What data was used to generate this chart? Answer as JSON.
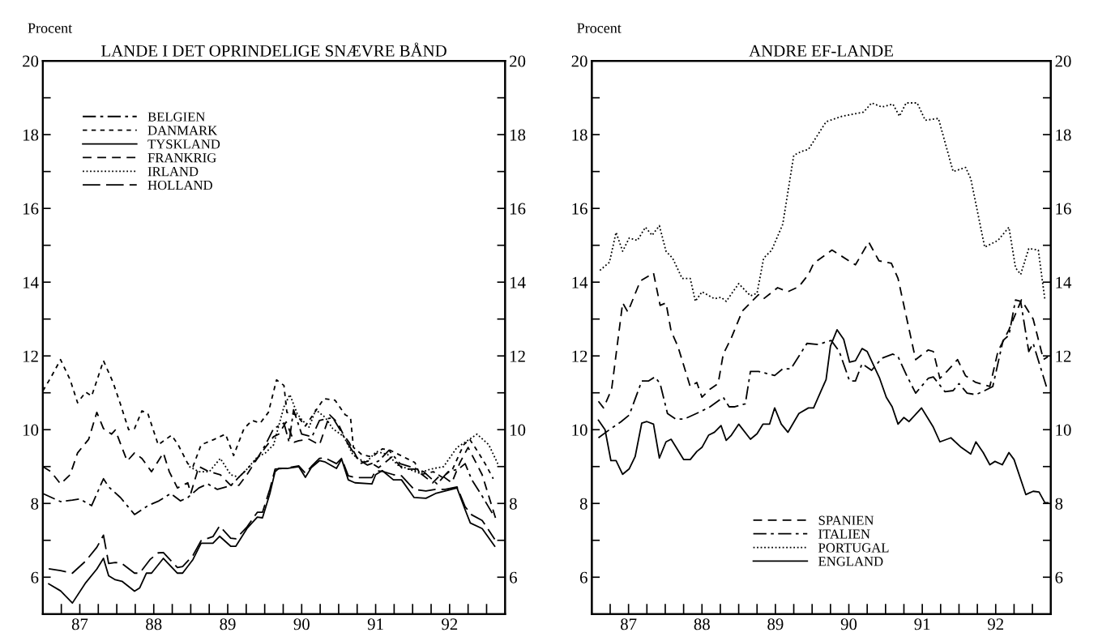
{
  "chart_data": [
    {
      "type": "line",
      "title": "LANDE I DET OPRINDELIGE SNÆVRE BÅND",
      "ylabel": "Procent",
      "xlim": [
        1986.5,
        1992.75
      ],
      "ylim": [
        5,
        20
      ],
      "y2lim": [
        5,
        20
      ],
      "xticks": [
        {
          "value": 1986.75,
          "label": null
        },
        {
          "value": 1987,
          "label": "87"
        },
        {
          "value": 1987.25,
          "label": null
        },
        {
          "value": 1987.5,
          "label": null
        },
        {
          "value": 1987.75,
          "label": null
        },
        {
          "value": 1988,
          "label": "88"
        },
        {
          "value": 1988.25,
          "label": null
        },
        {
          "value": 1988.5,
          "label": null
        },
        {
          "value": 1988.75,
          "label": null
        },
        {
          "value": 1989,
          "label": "89"
        },
        {
          "value": 1989.25,
          "label": null
        },
        {
          "value": 1989.5,
          "label": null
        },
        {
          "value": 1989.75,
          "label": null
        },
        {
          "value": 1990,
          "label": "90"
        },
        {
          "value": 1990.25,
          "label": null
        },
        {
          "value": 1990.5,
          "label": null
        },
        {
          "value": 1990.75,
          "label": null
        },
        {
          "value": 1991,
          "label": "91"
        },
        {
          "value": 1991.25,
          "label": null
        },
        {
          "value": 1991.5,
          "label": null
        },
        {
          "value": 1991.75,
          "label": null
        },
        {
          "value": 1992,
          "label": "92"
        },
        {
          "value": 1992.25,
          "label": null
        },
        {
          "value": 1992.5,
          "label": null
        }
      ],
      "yticks": [
        6,
        {
          "value": 7,
          "label": null
        },
        8,
        {
          "value": 9,
          "label": null
        },
        10,
        {
          "value": 11,
          "label": null
        },
        12,
        {
          "value": 13,
          "label": null
        },
        14,
        {
          "value": 15,
          "label": null
        },
        16,
        {
          "value": 17,
          "label": null
        },
        18,
        {
          "value": 19,
          "label": null
        },
        20
      ],
      "y2ticks": [
        6,
        {
          "value": 7,
          "label": null
        },
        8,
        {
          "value": 9,
          "label": null
        },
        10,
        {
          "value": 11,
          "label": null
        },
        12,
        {
          "value": 13,
          "label": null
        },
        14,
        {
          "value": 15,
          "label": null
        },
        16,
        {
          "value": 17,
          "label": null
        },
        18,
        {
          "value": 19,
          "label": null
        },
        20
      ],
      "grid": false,
      "legend": "top left",
      "series": [
        {
          "name": "BELGIEN",
          "color": "#000000",
          "line_style": "dashdot",
          "x": [
            1986.5,
            1986.74,
            1986.9,
            1987.0,
            1987.16,
            1987.32,
            1987.39,
            1987.55,
            1987.74,
            1987.92,
            1988.07,
            1988.23,
            1988.36,
            1988.46,
            1988.61,
            1988.73,
            1988.86,
            1989.04,
            1989.15,
            1989.26,
            1989.4,
            1989.51,
            1989.62,
            1989.76,
            1989.83,
            1989.89,
            1990.0,
            1990.14,
            1990.24,
            1990.42,
            1990.53,
            1990.6,
            1990.75,
            1990.89,
            1991.04,
            1991.18,
            1991.33,
            1991.51,
            1991.65,
            1991.83,
            1991.98,
            1992.12,
            1992.21,
            1992.3,
            1992.44,
            1992.59
          ],
          "values": [
            8.27,
            8.05,
            8.09,
            8.12,
            7.94,
            8.67,
            8.45,
            8.16,
            7.7,
            7.94,
            8.07,
            8.27,
            8.07,
            8.16,
            8.42,
            8.53,
            8.38,
            8.48,
            8.71,
            8.93,
            9.22,
            9.59,
            10.03,
            10.18,
            9.66,
            10.54,
            9.88,
            9.81,
            10.25,
            10.33,
            9.96,
            9.7,
            9.22,
            9.04,
            9.15,
            9.44,
            9.08,
            8.97,
            8.86,
            8.53,
            8.86,
            8.93,
            9.08,
            8.64,
            8.2,
            7.69
          ]
        },
        {
          "name": "DANMARK",
          "color": "#000000",
          "line_style": "shortdash",
          "x": [
            1986.5,
            1986.61,
            1986.74,
            1986.87,
            1986.97,
            1987.08,
            1987.16,
            1987.32,
            1987.45,
            1987.55,
            1987.66,
            1987.74,
            1987.84,
            1987.92,
            1988.06,
            1988.24,
            1988.33,
            1988.46,
            1988.53,
            1988.64,
            1988.82,
            1988.97,
            1989.08,
            1989.22,
            1989.33,
            1989.44,
            1989.55,
            1989.66,
            1989.76,
            1989.8,
            1989.93,
            1990.05,
            1990.3,
            1990.45,
            1990.59,
            1990.66,
            1990.7,
            1990.81,
            1990.95,
            1991.09,
            1991.2,
            1991.34,
            1991.53,
            1991.6,
            1991.78,
            1991.9,
            1992.04,
            1992.19,
            1992.27,
            1992.37,
            1992.48,
            1992.59
          ],
          "values": [
            11.05,
            11.42,
            11.9,
            11.35,
            10.73,
            11.02,
            10.91,
            11.87,
            11.28,
            10.69,
            10.0,
            10.03,
            10.51,
            10.44,
            9.59,
            9.85,
            9.59,
            9.08,
            9.0,
            9.59,
            9.74,
            9.88,
            9.3,
            10.03,
            10.25,
            10.18,
            10.47,
            11.35,
            11.2,
            10.47,
            10.4,
            10.1,
            10.84,
            10.8,
            10.4,
            10.33,
            9.52,
            9.33,
            9.26,
            9.48,
            9.44,
            9.3,
            9.11,
            8.78,
            8.86,
            8.71,
            8.93,
            9.59,
            9.74,
            9.44,
            9.08,
            8.67
          ]
        },
        {
          "name": "TYSKLAND",
          "color": "#000000",
          "line_style": "solid",
          "x": [
            1986.58,
            1986.74,
            1986.9,
            1987.08,
            1987.23,
            1987.32,
            1987.39,
            1987.48,
            1987.57,
            1987.74,
            1987.81,
            1987.9,
            1987.97,
            1988.13,
            1988.32,
            1988.39,
            1988.53,
            1988.64,
            1988.8,
            1988.89,
            1989.04,
            1989.11,
            1989.26,
            1989.4,
            1989.47,
            1989.57,
            1989.64,
            1989.69,
            1989.8,
            1989.96,
            1990.05,
            1990.13,
            1990.24,
            1990.31,
            1990.47,
            1990.54,
            1990.63,
            1990.72,
            1990.95,
            1991.0,
            1991.09,
            1991.24,
            1991.35,
            1991.52,
            1991.68,
            1991.81,
            1991.94,
            1992.1,
            1992.21,
            1992.28,
            1992.44,
            1992.61
          ],
          "values": [
            5.82,
            5.63,
            5.3,
            5.85,
            6.22,
            6.51,
            6.04,
            5.93,
            5.89,
            5.62,
            5.71,
            6.11,
            6.11,
            6.51,
            6.11,
            6.11,
            6.48,
            6.92,
            6.92,
            7.11,
            6.84,
            6.84,
            7.32,
            7.63,
            7.61,
            8.27,
            8.86,
            8.95,
            8.95,
            9.0,
            8.71,
            8.97,
            9.16,
            9.13,
            8.95,
            9.2,
            8.64,
            8.56,
            8.53,
            8.78,
            8.89,
            8.64,
            8.64,
            8.16,
            8.14,
            8.27,
            8.34,
            8.42,
            7.83,
            7.47,
            7.32,
            6.84
          ]
        },
        {
          "name": "FRANKRIG",
          "color": "#000000",
          "line_style": "dashed",
          "x": [
            1986.5,
            1986.61,
            1986.74,
            1986.87,
            1986.97,
            1987.12,
            1987.23,
            1987.32,
            1987.43,
            1987.48,
            1987.64,
            1987.74,
            1987.84,
            1987.97,
            1988.13,
            1988.21,
            1988.32,
            1988.46,
            1988.5,
            1988.61,
            1988.75,
            1988.9,
            1989.04,
            1989.15,
            1989.26,
            1989.4,
            1989.51,
            1989.62,
            1989.69,
            1989.79,
            1989.9,
            1989.96,
            1990.1,
            1990.24,
            1990.38,
            1990.49,
            1990.56,
            1990.64,
            1990.79,
            1990.9,
            1991.04,
            1991.22,
            1991.37,
            1991.52,
            1991.63,
            1991.77,
            1991.88,
            1992.03,
            1992.14,
            1992.25,
            1992.44,
            1992.62
          ],
          "values": [
            9.0,
            8.86,
            8.53,
            8.78,
            9.37,
            9.74,
            10.47,
            10.03,
            9.88,
            9.99,
            9.15,
            9.37,
            9.22,
            8.86,
            9.37,
            8.86,
            8.42,
            8.56,
            8.27,
            9.0,
            8.86,
            8.78,
            8.49,
            8.49,
            8.78,
            9.22,
            9.52,
            9.81,
            9.88,
            10.21,
            9.66,
            9.7,
            9.74,
            9.59,
            10.4,
            10.18,
            9.88,
            9.66,
            9.08,
            9.15,
            8.97,
            9.26,
            8.93,
            8.93,
            8.78,
            8.56,
            8.78,
            8.56,
            9.11,
            9.52,
            8.78,
            7.61
          ]
        },
        {
          "name": "IRLAND",
          "color": "#000000",
          "line_style": "dotted",
          "x": [
            1988.48,
            1988.61,
            1988.75,
            1988.9,
            1989.04,
            1989.15,
            1989.26,
            1989.4,
            1989.51,
            1989.62,
            1989.76,
            1989.84,
            1989.94,
            1990.01,
            1990.1,
            1990.19,
            1990.32,
            1990.42,
            1990.57,
            1990.69,
            1990.76,
            1990.87,
            1991.01,
            1991.16,
            1991.3,
            1991.45,
            1991.59,
            1991.74,
            1991.92,
            1992.1,
            1992.21,
            1992.37,
            1992.53,
            1992.66
          ],
          "values": [
            9.0,
            8.86,
            8.86,
            9.22,
            8.78,
            8.71,
            8.93,
            9.26,
            9.37,
            9.59,
            10.62,
            10.95,
            10.43,
            10.25,
            10.07,
            10.54,
            10.33,
            10.03,
            9.81,
            9.33,
            9.22,
            9.11,
            9.41,
            9.33,
            9.04,
            8.93,
            8.82,
            8.93,
            9.0,
            9.52,
            9.66,
            9.88,
            9.59,
            9.04
          ]
        },
        {
          "name": "HOLLAND",
          "color": "#000000",
          "line_style": "longdash",
          "x": [
            1986.58,
            1986.74,
            1986.9,
            1987.08,
            1987.23,
            1987.32,
            1987.39,
            1987.48,
            1987.57,
            1987.74,
            1987.81,
            1987.95,
            1988.06,
            1988.13,
            1988.32,
            1988.39,
            1988.53,
            1988.64,
            1988.8,
            1988.89,
            1989.04,
            1989.11,
            1989.26,
            1989.4,
            1989.47,
            1989.57,
            1989.64,
            1989.8,
            1989.96,
            1990.05,
            1990.13,
            1990.24,
            1990.31,
            1990.47,
            1990.54,
            1990.63,
            1990.72,
            1990.95,
            1991.0,
            1991.09,
            1991.24,
            1991.35,
            1991.52,
            1991.68,
            1991.81,
            1991.94,
            1992.1,
            1992.21,
            1992.3,
            1992.44,
            1992.61
          ],
          "values": [
            6.23,
            6.18,
            6.11,
            6.44,
            6.81,
            7.14,
            6.37,
            6.4,
            6.37,
            6.11,
            6.11,
            6.48,
            6.66,
            6.67,
            6.26,
            6.29,
            6.59,
            6.99,
            7.1,
            7.39,
            7.06,
            7.04,
            7.36,
            7.76,
            7.76,
            8.39,
            8.93,
            8.96,
            9.02,
            8.82,
            9.0,
            9.22,
            9.24,
            9.08,
            9.22,
            8.75,
            8.7,
            8.7,
            8.89,
            8.87,
            8.78,
            8.75,
            8.38,
            8.34,
            8.38,
            8.38,
            8.45,
            7.91,
            7.69,
            7.54,
            7.03
          ]
        }
      ]
    },
    {
      "type": "line",
      "title": "ANDRE EF-LANDE",
      "ylabel": "Procent",
      "xlim": [
        1986.5,
        1992.75
      ],
      "ylim": [
        5,
        20
      ],
      "y2lim": [
        5,
        20
      ],
      "xticks": [
        {
          "value": 1986.75,
          "label": null
        },
        {
          "value": 1987,
          "label": "87"
        },
        {
          "value": 1987.25,
          "label": null
        },
        {
          "value": 1987.5,
          "label": null
        },
        {
          "value": 1987.75,
          "label": null
        },
        {
          "value": 1988,
          "label": "88"
        },
        {
          "value": 1988.25,
          "label": null
        },
        {
          "value": 1988.5,
          "label": null
        },
        {
          "value": 1988.75,
          "label": null
        },
        {
          "value": 1989,
          "label": "89"
        },
        {
          "value": 1989.25,
          "label": null
        },
        {
          "value": 1989.5,
          "label": null
        },
        {
          "value": 1989.75,
          "label": null
        },
        {
          "value": 1990,
          "label": "90"
        },
        {
          "value": 1990.25,
          "label": null
        },
        {
          "value": 1990.5,
          "label": null
        },
        {
          "value": 1990.75,
          "label": null
        },
        {
          "value": 1991,
          "label": "91"
        },
        {
          "value": 1991.25,
          "label": null
        },
        {
          "value": 1991.5,
          "label": null
        },
        {
          "value": 1991.75,
          "label": null
        },
        {
          "value": 1992,
          "label": "92"
        },
        {
          "value": 1992.25,
          "label": null
        },
        {
          "value": 1992.5,
          "label": null
        }
      ],
      "yticks": [
        6,
        {
          "value": 7,
          "label": null
        },
        8,
        {
          "value": 9,
          "label": null
        },
        10,
        {
          "value": 11,
          "label": null
        },
        12,
        {
          "value": 13,
          "label": null
        },
        14,
        {
          "value": 15,
          "label": null
        },
        16,
        {
          "value": 17,
          "label": null
        },
        18,
        {
          "value": 19,
          "label": null
        },
        20
      ],
      "y2ticks": [
        6,
        {
          "value": 7,
          "label": null
        },
        8,
        {
          "value": 9,
          "label": null
        },
        10,
        {
          "value": 11,
          "label": null
        },
        12,
        {
          "value": 13,
          "label": null
        },
        14,
        {
          "value": 15,
          "label": null
        },
        16,
        {
          "value": 17,
          "label": null
        },
        18,
        {
          "value": 19,
          "label": null
        },
        20
      ],
      "grid": false,
      "legend": "bottom",
      "series": [
        {
          "name": "SPANIEN",
          "color": "#000000",
          "line_style": "dashed",
          "x": [
            1986.59,
            1986.66,
            1986.77,
            1986.92,
            1986.99,
            1987.16,
            1987.34,
            1987.43,
            1987.51,
            1987.58,
            1987.67,
            1987.84,
            1987.93,
            1988.0,
            1988.11,
            1988.22,
            1988.29,
            1988.4,
            1988.55,
            1988.66,
            1988.77,
            1988.84,
            1989.03,
            1989.17,
            1989.32,
            1989.45,
            1989.52,
            1989.77,
            1990.09,
            1990.27,
            1990.41,
            1990.58,
            1990.67,
            1990.79,
            1990.91,
            1991.08,
            1991.15,
            1991.24,
            1991.35,
            1991.48,
            1991.59,
            1991.73,
            1991.92,
            1992.03,
            1992.18,
            1992.35,
            1992.51,
            1992.65,
            1992.71
          ],
          "values": [
            10.77,
            10.59,
            11.1,
            13.44,
            13.19,
            14.03,
            14.25,
            13.37,
            13.44,
            12.67,
            12.27,
            11.17,
            11.28,
            10.88,
            11.1,
            11.25,
            12.05,
            12.49,
            13.22,
            13.44,
            13.66,
            13.55,
            13.85,
            13.74,
            13.88,
            14.21,
            14.51,
            14.87,
            14.47,
            15.09,
            14.58,
            14.51,
            14.1,
            13.0,
            11.9,
            12.16,
            12.12,
            11.39,
            11.61,
            11.9,
            11.46,
            11.28,
            11.17,
            12.12,
            12.71,
            13.52,
            13.0,
            11.9,
            11.98
          ]
        },
        {
          "name": "ITALIEN",
          "color": "#000000",
          "line_style": "dashdot",
          "x": [
            1986.59,
            1986.74,
            1986.9,
            1987.01,
            1987.18,
            1987.27,
            1987.36,
            1987.43,
            1987.53,
            1987.64,
            1987.76,
            1987.97,
            1988.11,
            1988.29,
            1988.37,
            1988.44,
            1988.59,
            1988.66,
            1988.77,
            1988.99,
            1989.1,
            1989.21,
            1989.43,
            1989.58,
            1989.76,
            1989.87,
            1990.01,
            1990.09,
            1990.18,
            1990.31,
            1990.45,
            1990.6,
            1990.67,
            1990.78,
            1990.91,
            1991.08,
            1991.15,
            1991.31,
            1991.42,
            1991.5,
            1991.61,
            1991.73,
            1991.85,
            1991.96,
            1992.1,
            1992.18,
            1992.27,
            1992.34,
            1992.45,
            1992.51,
            1992.69
          ],
          "values": [
            9.78,
            10.0,
            10.22,
            10.4,
            11.32,
            11.32,
            11.43,
            11.25,
            10.44,
            10.29,
            10.29,
            10.48,
            10.62,
            10.88,
            10.62,
            10.62,
            10.7,
            11.58,
            11.58,
            11.47,
            11.65,
            11.65,
            12.34,
            12.31,
            12.42,
            12.12,
            11.32,
            11.32,
            11.79,
            11.61,
            11.94,
            12.05,
            11.98,
            11.5,
            10.99,
            11.39,
            11.43,
            11.03,
            11.06,
            11.25,
            10.99,
            10.95,
            11.06,
            11.17,
            12.42,
            12.56,
            13.52,
            13.48,
            12.12,
            12.34,
            11.17
          ]
        },
        {
          "name": "PORTUGAL",
          "color": "#000000",
          "line_style": "dotted",
          "x": [
            1986.61,
            1986.74,
            1986.83,
            1986.92,
            1987.01,
            1987.12,
            1987.23,
            1987.32,
            1987.42,
            1987.51,
            1987.6,
            1987.73,
            1987.84,
            1987.91,
            1988.0,
            1988.17,
            1988.26,
            1988.33,
            1988.5,
            1988.66,
            1988.75,
            1988.84,
            1988.95,
            1989.1,
            1989.25,
            1989.36,
            1989.45,
            1989.69,
            1989.91,
            1990.2,
            1990.31,
            1990.45,
            1990.6,
            1990.69,
            1990.78,
            1990.93,
            1991.04,
            1991.22,
            1991.42,
            1991.59,
            1991.66,
            1991.85,
            1992.03,
            1992.18,
            1992.27,
            1992.34,
            1992.45,
            1992.58,
            1992.67
          ],
          "values": [
            14.32,
            14.54,
            15.35,
            14.84,
            15.2,
            15.13,
            15.49,
            15.27,
            15.53,
            14.84,
            14.65,
            14.1,
            14.1,
            13.48,
            13.74,
            13.55,
            13.59,
            13.48,
            13.96,
            13.63,
            13.7,
            14.65,
            14.87,
            15.57,
            17.44,
            17.55,
            17.6,
            18.35,
            18.5,
            18.61,
            18.86,
            18.75,
            18.83,
            18.5,
            18.86,
            18.86,
            18.39,
            18.44,
            17.0,
            17.11,
            16.81,
            14.95,
            15.13,
            15.49,
            14.39,
            14.21,
            14.91,
            14.87,
            13.52
          ]
        },
        {
          "name": "ENGLAND",
          "color": "#000000",
          "line_style": "solid",
          "x": [
            1986.59,
            1986.68,
            1986.76,
            1986.83,
            1986.92,
            1987.01,
            1987.09,
            1987.18,
            1987.25,
            1987.34,
            1987.42,
            1987.51,
            1987.58,
            1987.75,
            1987.84,
            1987.93,
            1988.0,
            1988.09,
            1988.17,
            1988.26,
            1988.33,
            1988.4,
            1988.5,
            1988.66,
            1988.75,
            1988.83,
            1988.92,
            1988.99,
            1989.08,
            1989.17,
            1989.32,
            1989.45,
            1989.52,
            1989.69,
            1989.75,
            1989.84,
            1989.93,
            1990.01,
            1990.09,
            1990.18,
            1990.25,
            1990.42,
            1990.51,
            1990.59,
            1990.67,
            1990.75,
            1990.82,
            1990.99,
            1991.15,
            1991.24,
            1991.39,
            1991.53,
            1991.66,
            1991.73,
            1991.83,
            1991.92,
            1991.99,
            1992.09,
            1992.18,
            1992.25,
            1992.41,
            1992.51,
            1992.59,
            1992.67,
            1992.71
          ],
          "values": [
            10.26,
            10.0,
            9.16,
            9.16,
            8.79,
            8.94,
            9.27,
            10.18,
            10.22,
            10.15,
            9.23,
            9.67,
            9.74,
            9.19,
            9.19,
            9.41,
            9.52,
            9.85,
            9.93,
            10.11,
            9.71,
            9.85,
            10.15,
            9.74,
            9.89,
            10.15,
            10.15,
            10.59,
            10.15,
            9.93,
            10.44,
            10.59,
            10.59,
            11.36,
            12.27,
            12.71,
            12.45,
            11.83,
            11.87,
            12.2,
            12.12,
            11.39,
            10.88,
            10.62,
            10.15,
            10.33,
            10.22,
            10.59,
            10.07,
            9.67,
            9.78,
            9.52,
            9.34,
            9.67,
            9.38,
            9.05,
            9.14,
            9.05,
            9.38,
            9.19,
            8.24,
            8.33,
            8.31,
            8.02,
            8.02
          ]
        }
      ]
    }
  ]
}
